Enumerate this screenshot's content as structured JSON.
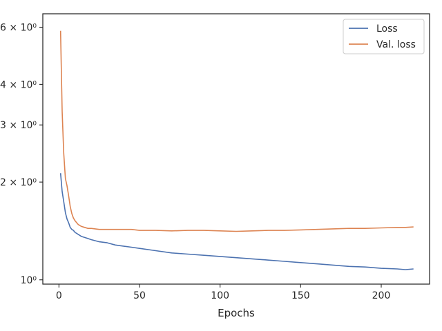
{
  "chart_data": {
    "type": "line",
    "title": "",
    "xlabel": "Epochs",
    "ylabel": "",
    "xlim": [
      -10,
      230
    ],
    "ylim": [
      0.97,
      6.6
    ],
    "yscale": "log",
    "grid": false,
    "legend_position": "top-right",
    "x_ticks": [
      0,
      50,
      100,
      150,
      200
    ],
    "x_tick_labels": [
      "0",
      "50",
      "100",
      "150",
      "200"
    ],
    "y_ticks": [
      1,
      2,
      3,
      4,
      6
    ],
    "y_tick_labels": [
      "10⁰",
      "2 × 10⁰",
      "3 × 10⁰",
      "4 × 10⁰",
      "6 × 10⁰"
    ],
    "series": [
      {
        "name": "Loss",
        "color": "#4c72b0",
        "x": [
          1,
          2,
          3,
          4,
          5,
          6,
          7,
          8,
          9,
          10,
          12,
          14,
          16,
          18,
          20,
          25,
          30,
          35,
          40,
          45,
          50,
          60,
          70,
          80,
          90,
          100,
          110,
          120,
          130,
          140,
          150,
          160,
          170,
          180,
          190,
          200,
          210,
          215,
          220
        ],
        "y": [
          2.13,
          1.87,
          1.74,
          1.61,
          1.54,
          1.5,
          1.45,
          1.43,
          1.42,
          1.4,
          1.38,
          1.36,
          1.35,
          1.34,
          1.33,
          1.31,
          1.3,
          1.28,
          1.27,
          1.26,
          1.25,
          1.23,
          1.21,
          1.2,
          1.19,
          1.18,
          1.17,
          1.16,
          1.15,
          1.14,
          1.13,
          1.12,
          1.11,
          1.1,
          1.095,
          1.085,
          1.08,
          1.075,
          1.08
        ]
      },
      {
        "name": "Val. loss",
        "color": "#dd8452",
        "x": [
          1,
          2,
          3,
          4,
          5,
          6,
          7,
          8,
          9,
          10,
          12,
          14,
          16,
          18,
          20,
          25,
          30,
          35,
          40,
          45,
          50,
          60,
          70,
          80,
          90,
          100,
          110,
          120,
          130,
          140,
          150,
          160,
          170,
          180,
          190,
          200,
          210,
          215,
          220
        ],
        "y": [
          5.85,
          3.3,
          2.45,
          2.05,
          1.95,
          1.82,
          1.68,
          1.6,
          1.55,
          1.52,
          1.48,
          1.46,
          1.45,
          1.44,
          1.44,
          1.43,
          1.43,
          1.43,
          1.43,
          1.43,
          1.42,
          1.42,
          1.415,
          1.42,
          1.42,
          1.415,
          1.41,
          1.415,
          1.42,
          1.42,
          1.425,
          1.43,
          1.435,
          1.44,
          1.44,
          1.445,
          1.45,
          1.45,
          1.455
        ]
      }
    ]
  }
}
